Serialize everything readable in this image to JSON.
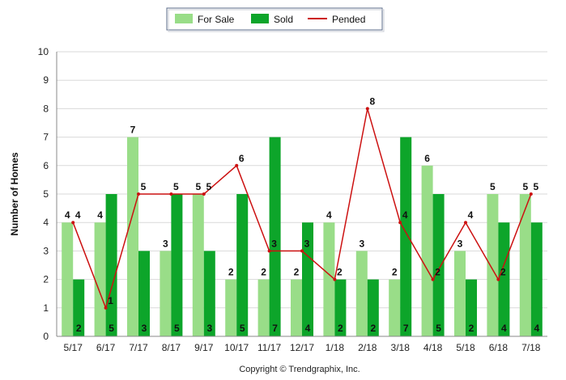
{
  "chart_data": {
    "type": "bar",
    "title": "",
    "xlabel": "",
    "ylabel": "Number of Homes",
    "ylim": [
      0,
      10
    ],
    "yticks": [
      0,
      1,
      2,
      3,
      4,
      5,
      6,
      7,
      8,
      9,
      10
    ],
    "grid": true,
    "legend_position": "top-center",
    "categories": [
      "5/17",
      "6/17",
      "7/17",
      "8/17",
      "9/17",
      "10/17",
      "11/17",
      "12/17",
      "1/18",
      "2/18",
      "3/18",
      "4/18",
      "5/18",
      "6/18",
      "7/18"
    ],
    "series": [
      {
        "name": "For Sale",
        "kind": "bar",
        "color": "#99dd88",
        "values": [
          4,
          4,
          7,
          3,
          5,
          2,
          2,
          2,
          4,
          3,
          2,
          6,
          3,
          5,
          5
        ]
      },
      {
        "name": "Sold",
        "kind": "bar",
        "color": "#0da52a",
        "values": [
          2,
          5,
          3,
          5,
          3,
          5,
          7,
          4,
          2,
          2,
          7,
          5,
          2,
          4,
          4
        ]
      },
      {
        "name": "Pended",
        "kind": "line",
        "color": "#cc1111",
        "values": [
          4,
          1,
          5,
          5,
          5,
          6,
          3,
          3,
          2,
          8,
          4,
          2,
          4,
          2,
          5
        ]
      }
    ],
    "credit": "Copyright © Trendgraphix, Inc."
  }
}
